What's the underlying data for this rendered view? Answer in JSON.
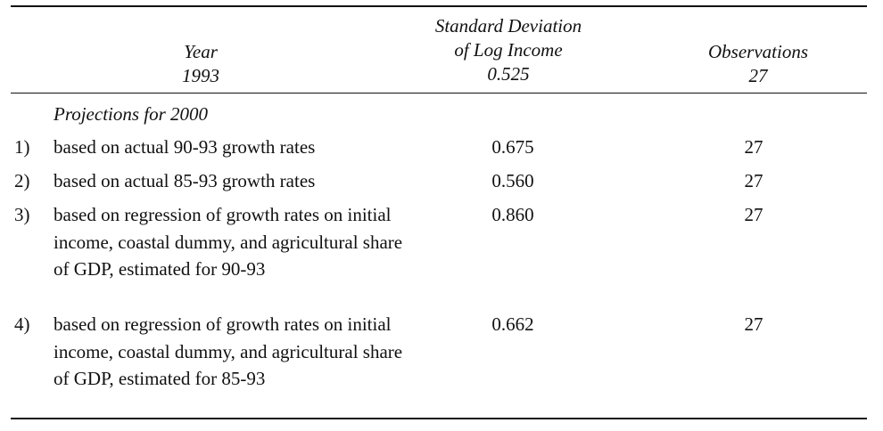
{
  "header": {
    "year_label": "Year",
    "year_value": "1993",
    "sd_label_line1": "Standard Deviation",
    "sd_label_line2": "of Log Income",
    "sd_value": "0.525",
    "obs_label": "Observations",
    "obs_value": "27"
  },
  "section_title": "Projections for 2000",
  "rows": [
    {
      "num": "1)",
      "desc": "based on actual 90-93 growth rates",
      "sd": "0.675",
      "obs": "27"
    },
    {
      "num": "2)",
      "desc": "based on actual 85-93 growth rates",
      "sd": "0.560",
      "obs": "27"
    },
    {
      "num": "3)",
      "desc": "based on regression of growth rates on initial income, coastal dummy, and agricultural share of GDP, estimated for 90-93",
      "sd": "0.860",
      "obs": "27"
    },
    {
      "num": "4)",
      "desc": "based on regression of growth rates on initial income, coastal dummy, and agricultural share of GDP, estimated for 85-93",
      "sd": "0.662",
      "obs": "27"
    }
  ]
}
